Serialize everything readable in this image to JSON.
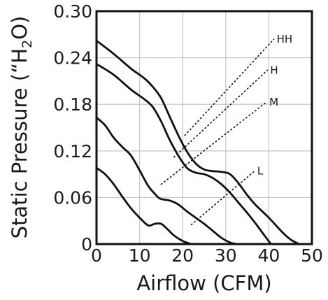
{
  "chart_data": {
    "type": "line",
    "xlabel": "Airflow (CFM)",
    "ylabel_parts": {
      "pre": "Static Pressure (“H",
      "sub": "2",
      "post": "O)"
    },
    "xlim": [
      0,
      50
    ],
    "ylim": [
      0,
      0.3
    ],
    "xticks": [
      0,
      10,
      20,
      30,
      40,
      50
    ],
    "yticks": [
      "0",
      "0.06",
      "0.12",
      "0.18",
      "0.24",
      "0.30"
    ],
    "grid": true,
    "series": [
      {
        "name": "HH",
        "x": [
          0,
          4,
          8,
          11,
          13,
          15,
          17,
          19,
          21,
          23,
          25,
          27,
          29,
          31,
          33,
          35,
          37,
          40,
          43,
          45,
          47
        ],
        "y": [
          0.262,
          0.245,
          0.226,
          0.214,
          0.203,
          0.188,
          0.164,
          0.14,
          0.119,
          0.104,
          0.096,
          0.094,
          0.093,
          0.09,
          0.078,
          0.063,
          0.05,
          0.034,
          0.016,
          0.006,
          0.0
        ]
      },
      {
        "name": "H",
        "x": [
          0,
          4,
          8,
          11,
          13,
          15,
          17,
          19,
          21,
          23,
          25,
          27,
          29,
          31,
          33,
          35,
          37,
          39,
          40.5
        ],
        "y": [
          0.232,
          0.218,
          0.199,
          0.187,
          0.177,
          0.158,
          0.134,
          0.114,
          0.098,
          0.092,
          0.09,
          0.085,
          0.077,
          0.066,
          0.053,
          0.04,
          0.026,
          0.011,
          0.0
        ]
      },
      {
        "name": "M",
        "x": [
          0,
          2,
          4,
          6,
          8,
          10,
          12,
          14,
          15,
          17,
          19,
          21,
          23,
          25,
          27,
          29,
          31,
          32.5
        ],
        "y": [
          0.163,
          0.153,
          0.137,
          0.125,
          0.114,
          0.095,
          0.075,
          0.062,
          0.058,
          0.056,
          0.051,
          0.042,
          0.034,
          0.026,
          0.017,
          0.008,
          0.002,
          0.0
        ]
      },
      {
        "name": "L",
        "x": [
          0,
          2,
          4,
          6,
          8,
          10,
          12,
          13.5,
          15,
          16.5,
          18,
          20,
          22
        ],
        "y": [
          0.098,
          0.09,
          0.077,
          0.061,
          0.046,
          0.034,
          0.024,
          0.026,
          0.026,
          0.019,
          0.011,
          0.004,
          0.0
        ]
      }
    ],
    "curve_labels": [
      {
        "name": "HH",
        "text": "HH",
        "x": 41.5,
        "y": 0.264,
        "leader_from": [
          20.5,
          0.14
        ]
      },
      {
        "name": "H",
        "text": "H",
        "x": 40.0,
        "y": 0.224,
        "leader_from": [
          18.0,
          0.112
        ]
      },
      {
        "name": "M",
        "text": "M",
        "x": 39.8,
        "y": 0.183,
        "leader_from": [
          15.0,
          0.077
        ]
      },
      {
        "name": "L",
        "text": "L",
        "x": 37.0,
        "y": 0.094,
        "leader_from": [
          22.0,
          0.025
        ]
      }
    ]
  }
}
